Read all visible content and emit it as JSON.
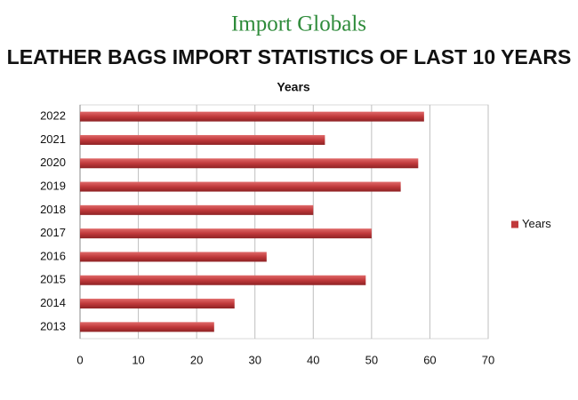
{
  "brand": "Import Globals",
  "chart_data": {
    "type": "barh",
    "title": "LEATHER BAGS IMPORT STATISTICS OF LAST 10 YEARS",
    "subtitle": "Years",
    "categories": [
      "2022",
      "2021",
      "2020",
      "2019",
      "2018",
      "2017",
      "2016",
      "2015",
      "2014",
      "2013"
    ],
    "series": [
      {
        "name": "Years",
        "color": "#c0393b",
        "values": [
          59,
          42,
          58,
          55,
          40,
          50,
          32,
          49,
          26.5,
          23
        ]
      }
    ],
    "xlim": [
      0,
      70
    ],
    "xticks": [
      0,
      10,
      20,
      30,
      40,
      50,
      60,
      70
    ],
    "grid": true,
    "legend": "right"
  }
}
